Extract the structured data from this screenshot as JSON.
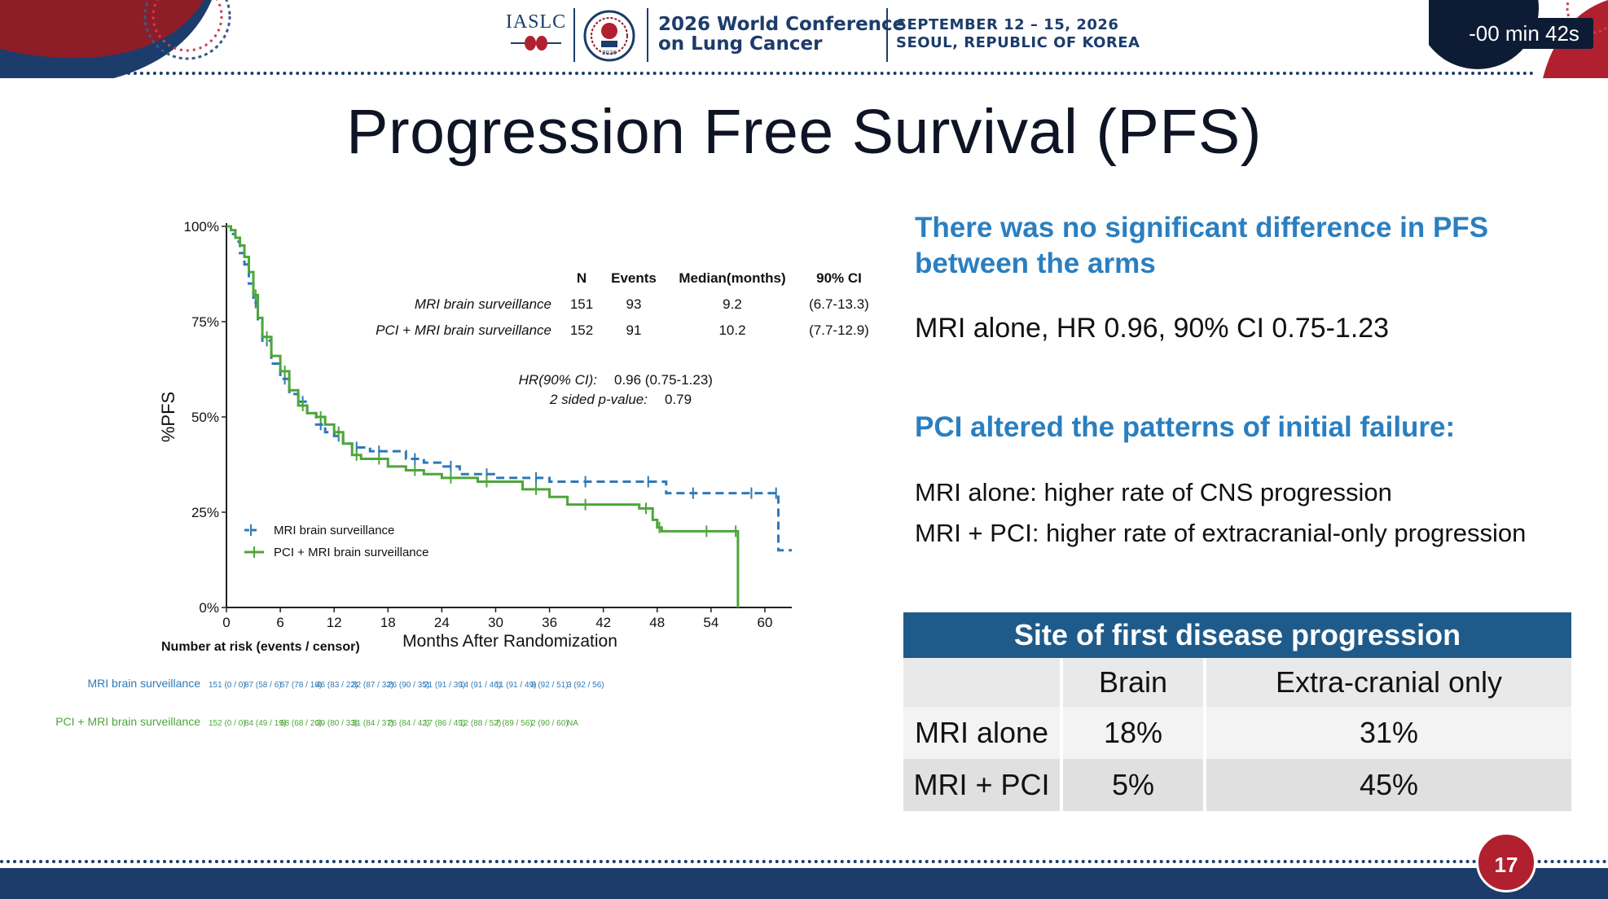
{
  "header": {
    "org": "IASLC",
    "conference_line1": "2026 World Conference",
    "conference_line2": "on Lung Cancer",
    "date_line1": "SEPTEMBER 12 – 15, 2026",
    "date_line2": "SEOUL, REPUBLIC OF KOREA",
    "timer": "-00 min 42s",
    "seal_year": "2026"
  },
  "title": "Progression Free Survival (PFS)",
  "right": {
    "heading1": "There was no significant difference in PFS between the arms",
    "hr_text": "MRI alone, HR 0.96, 90% CI 0.75-1.23",
    "heading2": "PCI altered the patterns of initial failure:",
    "point1": "MRI alone: higher rate of CNS progression",
    "point2": "MRI + PCI: higher rate of extracranial-only progression"
  },
  "table": {
    "title": "Site of first disease progression",
    "columns": [
      "",
      "Brain",
      "Extra-cranial only"
    ],
    "rows": [
      {
        "label": "MRI alone",
        "brain": "18%",
        "extra": "31%"
      },
      {
        "label": "MRI + PCI",
        "brain": "5%",
        "extra": "45%"
      }
    ]
  },
  "page_number": "17",
  "chart_data": {
    "type": "line",
    "xlabel": "Months After Randomization",
    "ylabel": "%PFS",
    "xlim": [
      0,
      63
    ],
    "ylim": [
      0,
      100
    ],
    "xticks": [
      "0",
      "6",
      "12",
      "18",
      "24",
      "30",
      "36",
      "42",
      "48",
      "54",
      "60"
    ],
    "yticks": [
      "0%",
      "25%",
      "50%",
      "75%",
      "100%"
    ],
    "colors": {
      "mri": "#2f79b8",
      "pci": "#4da63a"
    },
    "series": [
      {
        "name": "MRI brain surveillance",
        "style": "dashed",
        "x": [
          0,
          0.5,
          1,
          1.5,
          2,
          2.5,
          3,
          3.5,
          4,
          5,
          6,
          7,
          8,
          9,
          10,
          11,
          12,
          13,
          14,
          15,
          16,
          18,
          20,
          22,
          24,
          26,
          28,
          30,
          33,
          36,
          38,
          42,
          46,
          48,
          49,
          55,
          57,
          60,
          61,
          61.5,
          63
        ],
        "y": [
          100,
          98,
          96,
          93,
          90,
          85,
          80,
          75,
          70,
          64,
          60,
          56,
          54,
          51,
          48,
          46,
          45,
          43,
          42,
          42,
          41,
          41,
          39,
          38,
          37,
          35,
          35,
          34,
          34,
          33,
          33,
          33,
          33,
          33,
          30,
          30,
          30,
          30,
          30,
          15,
          15
        ]
      },
      {
        "name": "PCI + MRI brain surveillance",
        "style": "solid",
        "x": [
          0,
          0.5,
          1,
          1.5,
          2,
          2.5,
          3,
          3.5,
          4,
          5,
          6,
          7,
          8,
          9,
          10,
          11,
          12,
          13,
          14,
          15,
          16,
          18,
          20,
          22,
          24,
          26,
          28,
          30,
          33,
          36,
          38,
          42,
          46,
          47.5,
          48,
          48.5,
          52,
          55,
          56.5,
          57
        ],
        "y": [
          100,
          99,
          97,
          95,
          92,
          88,
          82,
          76,
          71,
          66,
          62,
          57,
          53,
          51,
          50,
          48,
          46,
          43,
          40,
          39,
          39,
          37,
          36,
          35,
          34,
          34,
          33,
          33,
          31,
          29,
          27,
          27,
          26,
          23,
          21,
          20,
          20,
          20,
          20,
          0
        ]
      }
    ],
    "stats_table": {
      "headers": [
        "N",
        "Events",
        "Median(months)",
        "90% CI"
      ],
      "rows": [
        {
          "label": "MRI brain surveillance",
          "n": "151",
          "events": "93",
          "median": "9.2",
          "ci": "(6.7-13.3)"
        },
        {
          "label": "PCI + MRI brain surveillance",
          "n": "152",
          "events": "91",
          "median": "10.2",
          "ci": "(7.7-12.9)"
        }
      ],
      "hr_label": "HR(90% CI):",
      "hr_value": "0.96 (0.75-1.23)",
      "p_label": "2 sided p-value:",
      "p_value": "0.79"
    },
    "legend": [
      "MRI brain surveillance",
      "PCI + MRI brain surveillance"
    ],
    "risk_table": {
      "title": "Number at risk (events / censor)",
      "mri_label": "MRI brain surveillance",
      "mri_values": [
        "151 (0 / 0)",
        "87 (58 / 6)",
        "57 (78 / 16)",
        "46 (83 / 22)",
        "32 (87 / 32)",
        "26 (90 / 35)",
        "21 (91 / 39)",
        "14 (91 / 46)",
        "11 (91 / 49)",
        "8 (92 / 51)",
        "3 (92 / 56)"
      ],
      "pci_label": "PCI + MRI brain surveillance",
      "pci_values": [
        "152 (0 / 0)",
        "84 (49 / 19)",
        "58 (68 / 26)",
        "39 (80 / 33)",
        "31 (84 / 37)",
        "26 (84 / 42)",
        "17 (86 / 49)",
        "12 (88 / 52)",
        "7 (89 / 56)",
        "2 (90 / 60)",
        "NA"
      ]
    }
  }
}
